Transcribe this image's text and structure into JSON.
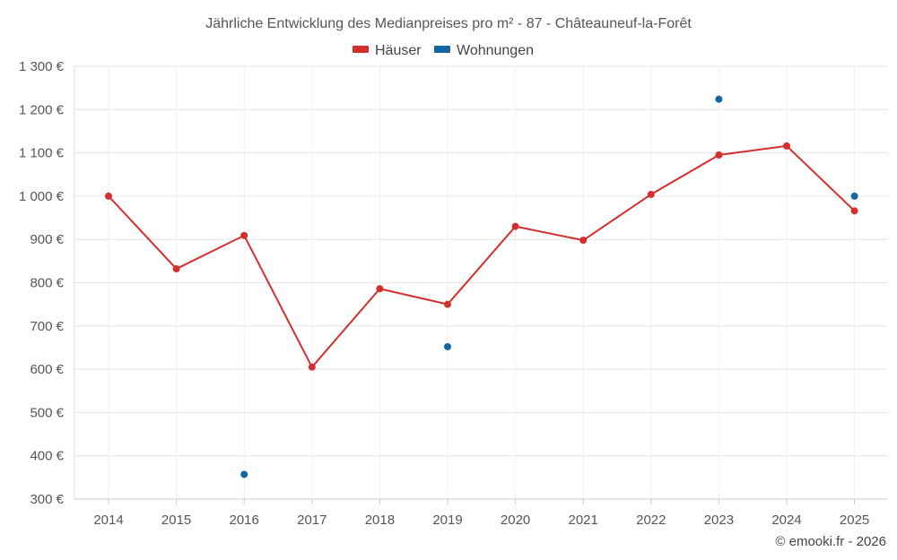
{
  "chart_data": {
    "type": "line",
    "title": "Jährliche Entwicklung des Medianpreises pro m² - 87 - Châteauneuf-la-Forêt",
    "categories": [
      "2014",
      "2015",
      "2016",
      "2017",
      "2018",
      "2019",
      "2020",
      "2021",
      "2022",
      "2023",
      "2024",
      "2025"
    ],
    "y_ticks": [
      "300 €",
      "400 €",
      "500 €",
      "600 €",
      "700 €",
      "800 €",
      "900 €",
      "1 000 €",
      "1 100 €",
      "1 200 €",
      "1 300 €"
    ],
    "ylim": [
      300,
      1300
    ],
    "grid": true,
    "legend_position": "top-center",
    "series": [
      {
        "name": "Häuser",
        "color": "#d32f2f",
        "mode": "line",
        "values": [
          1000,
          832,
          909,
          605,
          786,
          750,
          930,
          898,
          1004,
          1095,
          1116,
          966
        ]
      },
      {
        "name": "Wohnungen",
        "color": "#1565a0",
        "mode": "points",
        "values": [
          null,
          null,
          357,
          null,
          null,
          652,
          null,
          null,
          null,
          1224,
          null,
          1000
        ]
      }
    ],
    "credit": "© emooki.fr - 2026"
  }
}
